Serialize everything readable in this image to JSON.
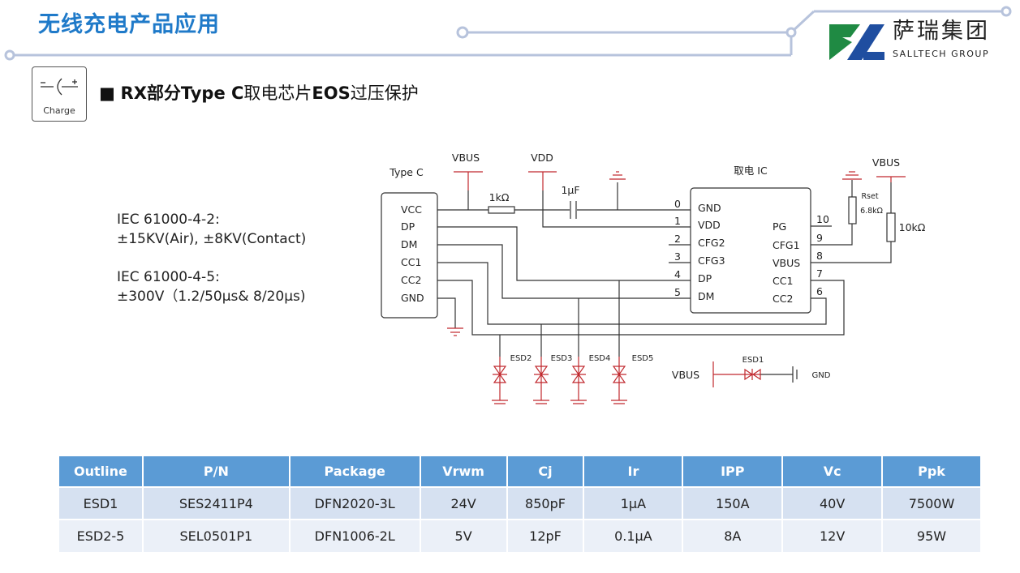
{
  "header": {
    "title": "无线充电产品应用",
    "logo_cn": "萨瑞集团",
    "logo_en": "SALLTECH GROUP"
  },
  "icon": {
    "name": "charge-icon",
    "label": "Charge"
  },
  "subtitle": {
    "bullet": "■",
    "bold_a": "RX部分Type C",
    "normal_a": "取电芯片",
    "bold_b": "EOS",
    "normal_b": "过压保护"
  },
  "iec": {
    "l1": "IEC 61000-4-2:",
    "l2": "±15KV(Air), ±8KV(Contact)",
    "l3": "IEC 61000-4-5:",
    "l4": "±300V（1.2/50μs& 8/20μs)"
  },
  "schematic": {
    "typec_title": "Type C",
    "typec_pins": [
      "VCC",
      "DP",
      "DM",
      "CC1",
      "CC2",
      "GND"
    ],
    "ic_title": "取电 IC",
    "ic_left": [
      "GND",
      "VDD",
      "CFG2",
      "CFG3",
      "DP",
      "DM"
    ],
    "ic_left_nums": [
      "0",
      "1",
      "2",
      "3",
      "4",
      "5"
    ],
    "ic_right": [
      "PG",
      "CFG1",
      "VBUS",
      "CC1",
      "CC2"
    ],
    "ic_right_nums": [
      "10",
      "9",
      "8",
      "7",
      "6"
    ],
    "vbus": "VBUS",
    "vdd": "VDD",
    "r1": "1kΩ",
    "c1": "1μF",
    "rset": "Rset",
    "rset_val": "6.8kΩ",
    "r2": "10kΩ",
    "esd": [
      "ESD2",
      "ESD3",
      "ESD4",
      "ESD5"
    ],
    "esd1": "ESD1",
    "esd1_vbus": "VBUS",
    "gnd": "GND",
    "colors": {
      "wire": "#222222",
      "red": "#c0282d"
    }
  },
  "table": {
    "headers": [
      "Outline",
      "P/N",
      "Package",
      "Vrwm",
      "Cj",
      "Ir",
      "IPP",
      "Vc",
      "Ppk"
    ],
    "rows": [
      [
        "ESD1",
        "SES2411P4",
        "DFN2020-3L",
        "24V",
        "850pF",
        "1μA",
        "150A",
        "40V",
        "7500W"
      ],
      [
        "ESD2-5",
        "SEL0501P1",
        "DFN1006-2L",
        "5V",
        "12pF",
        "0.1μA",
        "8A",
        "12V",
        "95W"
      ]
    ]
  }
}
